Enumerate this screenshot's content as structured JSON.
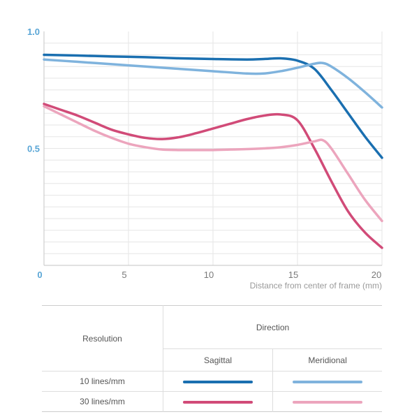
{
  "chart_data": {
    "type": "line",
    "title": "",
    "xlabel": "Distance from center of frame (mm)",
    "ylabel": "",
    "xlim": [
      0,
      20
    ],
    "ylim": [
      0,
      1.0
    ],
    "x_ticks": [
      0,
      5,
      10,
      15,
      20
    ],
    "x_tick_labels": [
      "0",
      "5",
      "10",
      "15",
      "20"
    ],
    "y_ticks": [
      0.5,
      1.0
    ],
    "y_tick_labels": [
      "0.5",
      "1.0"
    ],
    "grid": true,
    "series": [
      {
        "key": "s10",
        "color": "#1a6fb0",
        "x": [
          0,
          2,
          4,
          6,
          8,
          10,
          12,
          13,
          14,
          15,
          16,
          17,
          18,
          19,
          20
        ],
        "y": [
          0.9,
          0.897,
          0.893,
          0.89,
          0.885,
          0.882,
          0.88,
          0.882,
          0.885,
          0.875,
          0.84,
          0.75,
          0.65,
          0.55,
          0.46
        ]
      },
      {
        "key": "m10",
        "color": "#7fb3dd",
        "x": [
          0,
          2,
          4,
          6,
          8,
          10,
          12,
          13,
          14,
          15,
          16,
          16.5,
          17,
          18,
          19,
          20
        ],
        "y": [
          0.88,
          0.87,
          0.86,
          0.85,
          0.84,
          0.83,
          0.82,
          0.82,
          0.83,
          0.845,
          0.862,
          0.865,
          0.85,
          0.8,
          0.74,
          0.675
        ]
      },
      {
        "key": "s30",
        "color": "#d14b78",
        "x": [
          0,
          1,
          2,
          3,
          4,
          5,
          6,
          7,
          8,
          9,
          10,
          11,
          12,
          13,
          14,
          15,
          16,
          17,
          18,
          19,
          20
        ],
        "y": [
          0.69,
          0.665,
          0.64,
          0.61,
          0.58,
          0.56,
          0.545,
          0.54,
          0.548,
          0.565,
          0.585,
          0.605,
          0.625,
          0.64,
          0.645,
          0.62,
          0.5,
          0.36,
          0.23,
          0.14,
          0.075
        ]
      },
      {
        "key": "m30",
        "color": "#eca5bd",
        "x": [
          0,
          1,
          2,
          3,
          4,
          5,
          6,
          7,
          8,
          9,
          10,
          11,
          12,
          13,
          14,
          15,
          16,
          16.5,
          17,
          18,
          19,
          20
        ],
        "y": [
          0.68,
          0.645,
          0.61,
          0.575,
          0.545,
          0.52,
          0.505,
          0.495,
          0.493,
          0.493,
          0.493,
          0.495,
          0.497,
          0.5,
          0.505,
          0.515,
          0.53,
          0.535,
          0.5,
          0.39,
          0.28,
          0.19
        ]
      }
    ]
  },
  "legend": {
    "resolution_header": "Resolution",
    "direction_header": "Direction",
    "sagittal": "Sagittal",
    "meridional": "Meridional",
    "row1": "10 lines/mm",
    "row2": "30 lines/mm"
  },
  "colors": {
    "axis_label": "#5aa6d6",
    "grid": "#e6e6e6",
    "axis": "#cfcfcf"
  }
}
